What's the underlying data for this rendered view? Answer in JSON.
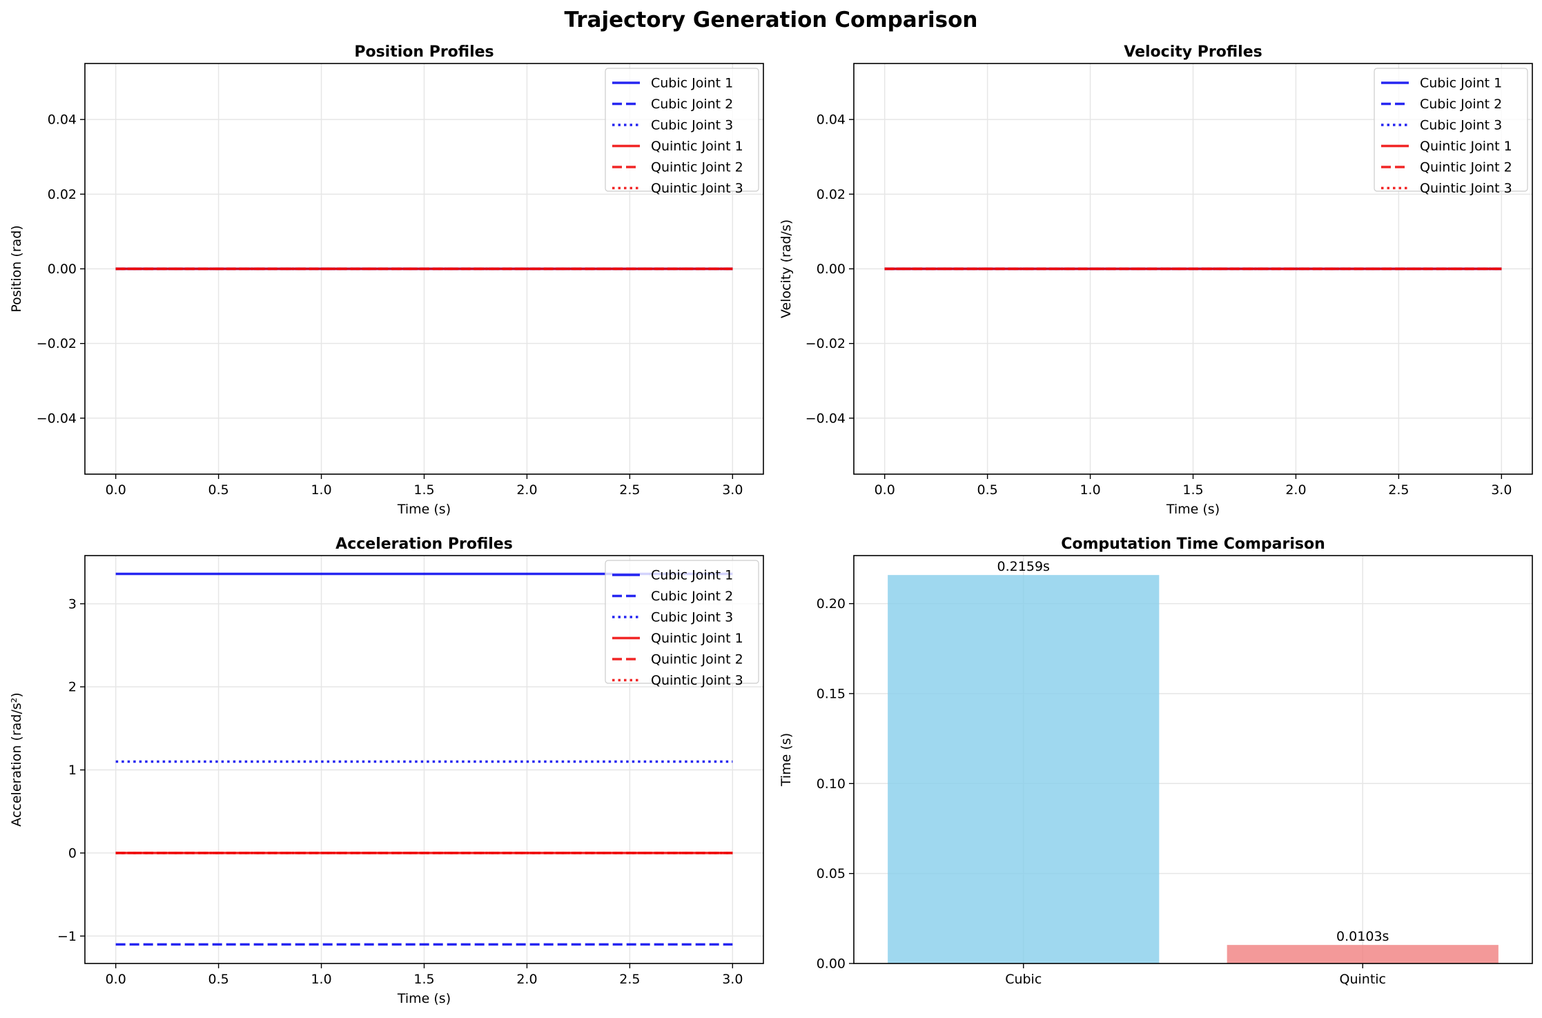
{
  "figure_title": "Trajectory Generation Comparison",
  "colors": {
    "cubic": "#0000ee",
    "quintic": "#ee0000",
    "bar_cubic": "#87ceeb",
    "bar_quintic": "#f08080",
    "grid": "#e6e6e6"
  },
  "chart_data": [
    {
      "type": "line",
      "title": "Position Profiles",
      "xlabel": "Time (s)",
      "ylabel": "Position (rad)",
      "xlim": [
        -0.15,
        3.15
      ],
      "ylim": [
        -0.055,
        0.055
      ],
      "xticks": [
        0.0,
        0.5,
        1.0,
        1.5,
        2.0,
        2.5,
        3.0
      ],
      "xtick_labels": [
        "0.0",
        "0.5",
        "1.0",
        "1.5",
        "2.0",
        "2.5",
        "3.0"
      ],
      "yticks": [
        -0.04,
        -0.02,
        0.0,
        0.02,
        0.04
      ],
      "ytick_labels": [
        "−0.04",
        "−0.02",
        "0.00",
        "0.02",
        "0.04"
      ],
      "grid": true,
      "legend": "top-right",
      "series": [
        {
          "name": "Cubic Joint 1",
          "style": "solid",
          "color": "#0000ee",
          "x": [
            0,
            3
          ],
          "y": [
            0,
            0
          ]
        },
        {
          "name": "Cubic Joint 2",
          "style": "dashed",
          "color": "#0000ee",
          "x": [
            0,
            3
          ],
          "y": [
            0,
            0
          ]
        },
        {
          "name": "Cubic Joint 3",
          "style": "dotted",
          "color": "#0000ee",
          "x": [
            0,
            3
          ],
          "y": [
            0,
            0
          ]
        },
        {
          "name": "Quintic Joint 1",
          "style": "solid",
          "color": "#ee0000",
          "x": [
            0,
            3
          ],
          "y": [
            0,
            0
          ]
        },
        {
          "name": "Quintic Joint 2",
          "style": "dashed",
          "color": "#ee0000",
          "x": [
            0,
            3
          ],
          "y": [
            0,
            0
          ]
        },
        {
          "name": "Quintic Joint 3",
          "style": "dotted",
          "color": "#ee0000",
          "x": [
            0,
            3
          ],
          "y": [
            0,
            0
          ]
        }
      ]
    },
    {
      "type": "line",
      "title": "Velocity Profiles",
      "xlabel": "Time (s)",
      "ylabel": "Velocity (rad/s)",
      "xlim": [
        -0.15,
        3.15
      ],
      "ylim": [
        -0.055,
        0.055
      ],
      "xticks": [
        0.0,
        0.5,
        1.0,
        1.5,
        2.0,
        2.5,
        3.0
      ],
      "xtick_labels": [
        "0.0",
        "0.5",
        "1.0",
        "1.5",
        "2.0",
        "2.5",
        "3.0"
      ],
      "yticks": [
        -0.04,
        -0.02,
        0.0,
        0.02,
        0.04
      ],
      "ytick_labels": [
        "−0.04",
        "−0.02",
        "0.00",
        "0.02",
        "0.04"
      ],
      "grid": true,
      "legend": "top-right",
      "series": [
        {
          "name": "Cubic Joint 1",
          "style": "solid",
          "color": "#0000ee",
          "x": [
            0,
            3
          ],
          "y": [
            0,
            0
          ]
        },
        {
          "name": "Cubic Joint 2",
          "style": "dashed",
          "color": "#0000ee",
          "x": [
            0,
            3
          ],
          "y": [
            0,
            0
          ]
        },
        {
          "name": "Cubic Joint 3",
          "style": "dotted",
          "color": "#0000ee",
          "x": [
            0,
            3
          ],
          "y": [
            0,
            0
          ]
        },
        {
          "name": "Quintic Joint 1",
          "style": "solid",
          "color": "#ee0000",
          "x": [
            0,
            3
          ],
          "y": [
            0,
            0
          ]
        },
        {
          "name": "Quintic Joint 2",
          "style": "dashed",
          "color": "#ee0000",
          "x": [
            0,
            3
          ],
          "y": [
            0,
            0
          ]
        },
        {
          "name": "Quintic Joint 3",
          "style": "dotted",
          "color": "#ee0000",
          "x": [
            0,
            3
          ],
          "y": [
            0,
            0
          ]
        }
      ]
    },
    {
      "type": "line",
      "title": "Acceleration Profiles",
      "xlabel": "Time (s)",
      "ylabel": "Acceleration (rad/s²)",
      "xlim": [
        -0.15,
        3.15
      ],
      "ylim": [
        -1.33,
        3.58
      ],
      "xticks": [
        0.0,
        0.5,
        1.0,
        1.5,
        2.0,
        2.5,
        3.0
      ],
      "xtick_labels": [
        "0.0",
        "0.5",
        "1.0",
        "1.5",
        "2.0",
        "2.5",
        "3.0"
      ],
      "yticks": [
        -1,
        0,
        1,
        2,
        3
      ],
      "ytick_labels": [
        "−1",
        "0",
        "1",
        "2",
        "3"
      ],
      "grid": true,
      "legend": "top-right",
      "series": [
        {
          "name": "Cubic Joint 1",
          "style": "solid",
          "color": "#0000ee",
          "x": [
            0,
            3
          ],
          "y": [
            3.36,
            3.36
          ]
        },
        {
          "name": "Cubic Joint 2",
          "style": "dashed",
          "color": "#0000ee",
          "x": [
            0,
            3
          ],
          "y": [
            -1.1,
            -1.1
          ]
        },
        {
          "name": "Cubic Joint 3",
          "style": "dotted",
          "color": "#0000ee",
          "x": [
            0,
            3
          ],
          "y": [
            1.1,
            1.1
          ]
        },
        {
          "name": "Quintic Joint 1",
          "style": "solid",
          "color": "#ee0000",
          "x": [
            0,
            3
          ],
          "y": [
            0,
            0
          ]
        },
        {
          "name": "Quintic Joint 2",
          "style": "dashed",
          "color": "#ee0000",
          "x": [
            0,
            3
          ],
          "y": [
            0,
            0
          ]
        },
        {
          "name": "Quintic Joint 3",
          "style": "dotted",
          "color": "#ee0000",
          "x": [
            0,
            3
          ],
          "y": [
            0,
            0
          ]
        }
      ]
    },
    {
      "type": "bar",
      "title": "Computation Time Comparison",
      "xlabel": "",
      "ylabel": "Time (s)",
      "categories": [
        "Cubic",
        "Quintic"
      ],
      "values": [
        0.2159,
        0.0103
      ],
      "value_labels": [
        "0.2159s",
        "0.0103s"
      ],
      "bar_colors": [
        "#87ceeb",
        "#f08080"
      ],
      "ylim": [
        0,
        0.2267
      ],
      "yticks": [
        0.0,
        0.05,
        0.1,
        0.15,
        0.2
      ],
      "ytick_labels": [
        "0.00",
        "0.05",
        "0.10",
        "0.15",
        "0.20"
      ],
      "grid": true
    }
  ]
}
